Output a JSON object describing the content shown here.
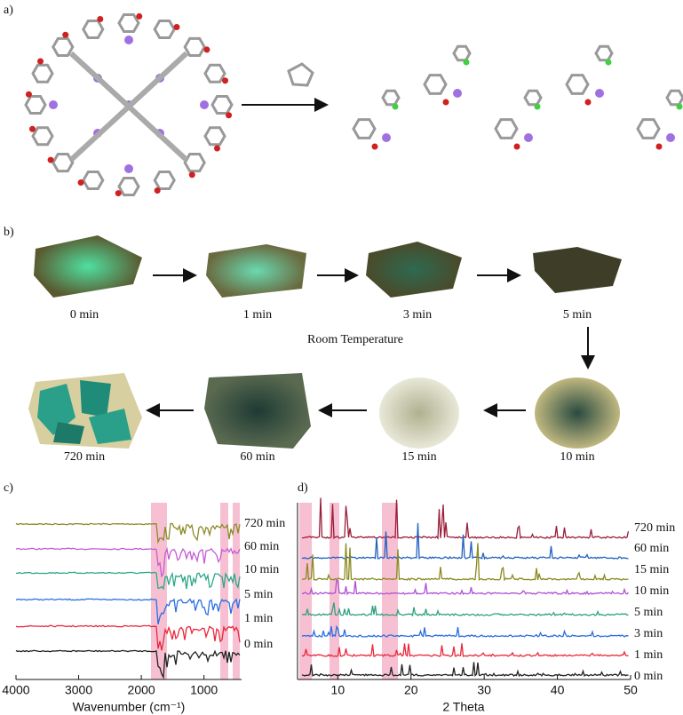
{
  "panel_a": {
    "label": "a)"
  },
  "panel_b": {
    "label": "b)",
    "condition": "Room Temperature",
    "steps": [
      "0 min",
      "1 min",
      "3 min",
      "5 min",
      "10 min",
      "15 min",
      "60 min",
      "720 min"
    ]
  },
  "panel_c": {
    "label": "c)",
    "xlabel": "Wavenumber (cm⁻¹)",
    "xlim": [
      4000,
      400
    ],
    "xticks": [
      4000,
      3000,
      2000,
      1000
    ],
    "traces": [
      {
        "name": "720 min",
        "color": "#8b8b2a"
      },
      {
        "name": "60 min",
        "color": "#c45bd6"
      },
      {
        "name": "10 min",
        "color": "#2da888"
      },
      {
        "name": "5 min",
        "color": "#2a6fe0"
      },
      {
        "name": "1 min",
        "color": "#e8283a"
      },
      {
        "name": "0 min",
        "color": "#222222"
      }
    ]
  },
  "panel_d": {
    "label": "d)",
    "xlabel": "2 Theta",
    "xlim": [
      4.5,
      50
    ],
    "xticks": [
      10,
      20,
      30,
      40,
      50
    ],
    "traces": [
      {
        "name": "720 min",
        "color": "#9a1f3a"
      },
      {
        "name": "60 min",
        "color": "#2060c0"
      },
      {
        "name": "15 min",
        "color": "#8a8a20"
      },
      {
        "name": "10 min",
        "color": "#b050d0"
      },
      {
        "name": "5 min",
        "color": "#30a080"
      },
      {
        "name": "3 min",
        "color": "#2a6fe0"
      },
      {
        "name": "1 min",
        "color": "#e8283a"
      },
      {
        "name": "0 min",
        "color": "#222222"
      }
    ]
  }
}
